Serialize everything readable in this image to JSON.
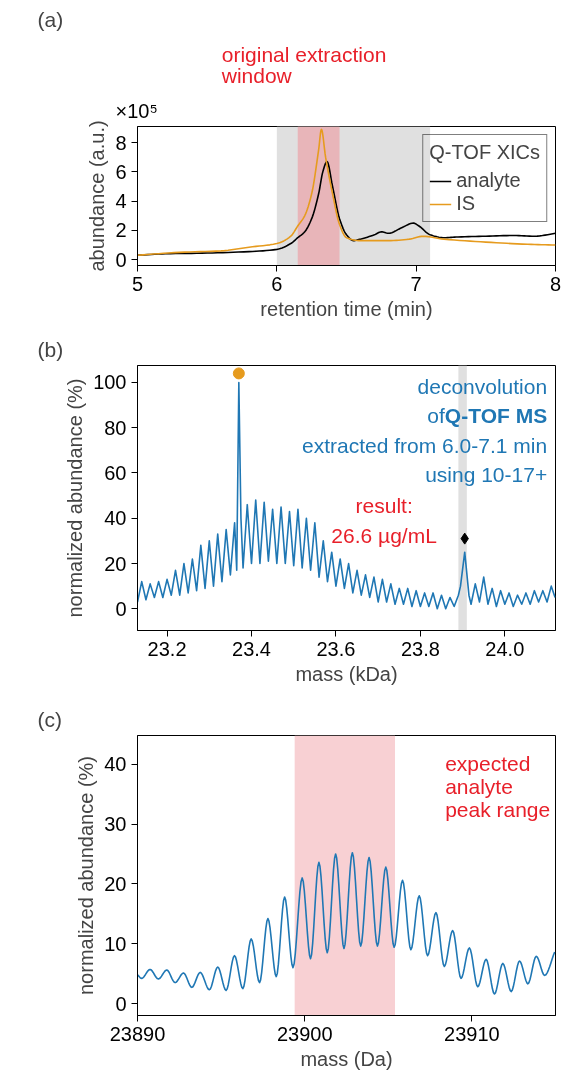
{
  "chart_data": [
    {
      "type": "line",
      "title": "(a)",
      "xlabel": "retention time (min)",
      "ylabel": "abundance (a.u.)",
      "legend_title": "Q-TOF XICs",
      "legend": "top right",
      "annotations": [
        "×10⁵"
      ],
      "xlim": [
        5,
        8
      ],
      "xticks": [
        5,
        6,
        7,
        8
      ],
      "ylim": [
        -0.4,
        9.1
      ],
      "yticks": [
        0,
        2,
        4,
        6,
        8
      ],
      "bands": [
        {
          "axis": "x",
          "from": 6.0,
          "to": 7.1,
          "color": "#e0e0e0"
        },
        {
          "axis": "x",
          "from": 6.15,
          "to": 6.45,
          "label": "original extraction window",
          "color": "#e8b5b9"
        }
      ],
      "series": [
        {
          "name": "analyte",
          "color": "#000000",
          "x": [
            5.0,
            5.2,
            5.5,
            5.8,
            6.0,
            6.1,
            6.15,
            6.2,
            6.25,
            6.3,
            6.33,
            6.36,
            6.4,
            6.45,
            6.5,
            6.55,
            6.6,
            6.7,
            6.75,
            6.8,
            6.9,
            6.98,
            7.02,
            7.1,
            7.2,
            7.3,
            7.5,
            7.7,
            7.85,
            8.0
          ],
          "values": [
            0.3,
            0.4,
            0.45,
            0.55,
            0.7,
            1.1,
            1.5,
            1.9,
            2.8,
            4.5,
            6.0,
            6.7,
            5.0,
            2.8,
            1.7,
            1.3,
            1.4,
            1.7,
            1.9,
            1.8,
            2.2,
            2.5,
            2.3,
            1.7,
            1.5,
            1.55,
            1.6,
            1.65,
            1.6,
            1.8
          ]
        },
        {
          "name": "IS",
          "color": "#e69b1e",
          "x": [
            5.0,
            5.3,
            5.6,
            5.8,
            6.0,
            6.1,
            6.15,
            6.2,
            6.25,
            6.3,
            6.32,
            6.35,
            6.4,
            6.45,
            6.5,
            6.6,
            6.8,
            6.95,
            7.05,
            7.2,
            7.5,
            7.8,
            8.0
          ],
          "values": [
            0.3,
            0.5,
            0.6,
            0.85,
            1.1,
            1.6,
            2.3,
            3.0,
            4.5,
            7.5,
            8.9,
            7.0,
            4.5,
            2.4,
            1.5,
            1.3,
            1.3,
            1.4,
            1.6,
            1.4,
            1.2,
            1.05,
            1.0
          ]
        }
      ]
    },
    {
      "type": "line",
      "title": "(b)",
      "xlabel": "mass (kDa)",
      "ylabel": "normalized abundance (%)",
      "annotations": [
        "deconvolution",
        "of",
        "Q-TOF MS",
        "extracted from 6.0-7.1 min",
        "using 10-17+",
        "result:",
        "26.6 µg/mL"
      ],
      "xlim": [
        23.13,
        24.12
      ],
      "xticks": [
        23.2,
        23.4,
        23.6,
        23.8,
        {
          "value": 24.0,
          "label": "24.0"
        }
      ],
      "ylim": [
        -9.6,
        107.5
      ],
      "yticks": [
        0,
        20,
        40,
        60,
        80,
        100
      ],
      "bands": [
        {
          "axis": "x",
          "from": 23.89,
          "to": 23.91,
          "color": "#e0e0e0"
        }
      ],
      "series": [
        {
          "color": "#1f77b4",
          "x": [
            23.13,
            23.14,
            23.15,
            23.16,
            23.17,
            23.18,
            23.19,
            23.2,
            23.21,
            23.22,
            23.23,
            23.24,
            23.25,
            23.26,
            23.27,
            23.28,
            23.29,
            23.3,
            23.31,
            23.32,
            23.33,
            23.34,
            23.35,
            23.36,
            23.365,
            23.37,
            23.375,
            23.38,
            23.39,
            23.4,
            23.41,
            23.42,
            23.43,
            23.44,
            23.45,
            23.46,
            23.47,
            23.48,
            23.49,
            23.5,
            23.51,
            23.52,
            23.53,
            23.54,
            23.55,
            23.56,
            23.57,
            23.58,
            23.59,
            23.6,
            23.61,
            23.62,
            23.63,
            23.64,
            23.65,
            23.66,
            23.67,
            23.68,
            23.69,
            23.7,
            23.71,
            23.72,
            23.73,
            23.74,
            23.75,
            23.76,
            23.77,
            23.78,
            23.79,
            23.8,
            23.81,
            23.82,
            23.83,
            23.84,
            23.85,
            23.86,
            23.87,
            23.88,
            23.89,
            23.895,
            23.905,
            23.915,
            23.92,
            23.93,
            23.94,
            23.95,
            23.96,
            23.97,
            23.98,
            23.99,
            24.0,
            24.01,
            24.02,
            24.03,
            24.04,
            24.05,
            24.06,
            24.07,
            24.08,
            24.09,
            24.1,
            24.11,
            24.119
          ],
          "values": [
            3,
            12,
            4,
            11,
            5,
            12,
            5,
            13,
            6,
            17,
            6,
            20,
            7,
            22,
            8,
            28,
            9,
            30,
            10,
            33,
            12,
            35,
            15,
            38,
            17,
            100,
            40,
            18,
            46,
            20,
            48,
            20,
            47,
            21,
            44,
            20,
            45,
            20,
            43,
            19,
            44,
            18,
            40,
            17,
            38,
            14,
            30,
            12,
            25,
            10,
            22,
            9,
            20,
            7,
            17,
            6,
            15,
            5,
            14,
            3,
            13,
            3,
            11,
            2,
            9,
            2,
            9,
            1,
            8,
            1,
            7,
            1,
            7,
            0,
            6,
            0,
            5,
            1,
            6,
            10,
            25,
            6,
            2,
            11,
            3,
            14,
            2,
            9,
            1,
            8,
            2,
            7,
            1,
            6,
            2,
            7,
            2,
            8,
            3,
            8,
            3,
            10,
            5
          ]
        },
        {
          "type": "scatter",
          "marker": "circle",
          "color": "#e69b1e",
          "x": [
            23.37
          ],
          "values": [
            104
          ]
        },
        {
          "type": "scatter",
          "marker": "diamond",
          "color": "#000000",
          "x": [
            23.905
          ],
          "values": [
            31
          ]
        }
      ]
    },
    {
      "type": "line",
      "title": "(c)",
      "xlabel": "mass (Da)",
      "ylabel": "normalized abundance (%)",
      "xlim": [
        23890,
        23915
      ],
      "xticks": [
        23890,
        23900,
        23910
      ],
      "ylim": [
        -2,
        44.8
      ],
      "yticks": [
        0,
        10,
        20,
        30,
        40
      ],
      "bands": [
        {
          "axis": "x",
          "from": 23899.4,
          "to": 23905.4,
          "label": "expected analyte peak range",
          "color": "#f8d0d3"
        }
      ],
      "series": [
        {
          "color": "#1f77b4",
          "x": [
            23890,
            23890.25,
            23890.75,
            23891.25,
            23891.75,
            23892.25,
            23892.75,
            23893.25,
            23893.75,
            23894.3,
            23894.8,
            23895.3,
            23895.8,
            23896.3,
            23896.8,
            23897.3,
            23897.8,
            23898.3,
            23898.8,
            23899.3,
            23899.85,
            23900.35,
            23900.85,
            23901.35,
            23901.85,
            23902.35,
            23902.85,
            23903.35,
            23903.85,
            23904.35,
            23904.85,
            23905.35,
            23905.85,
            23906.35,
            23906.85,
            23907.35,
            23907.85,
            23908.35,
            23908.85,
            23909.35,
            23909.85,
            23910.35,
            23910.85,
            23911.35,
            23911.85,
            23912.35,
            23912.85,
            23913.35,
            23913.85,
            23914.35,
            23914.95
          ],
          "values": [
            4.8,
            4.2,
            5.7,
            4.1,
            5.6,
            3.5,
            5.1,
            2.7,
            5.2,
            2.3,
            6.1,
            2.2,
            8.0,
            2.5,
            10.8,
            3.5,
            14.2,
            4.5,
            17.8,
            6.0,
            21.0,
            7.5,
            23.6,
            8.5,
            25.0,
            9.2,
            25.2,
            9.6,
            24.4,
            9.6,
            22.8,
            9.4,
            20.6,
            9.0,
            18.0,
            8.0,
            15.2,
            6.2,
            12.2,
            4.2,
            9.3,
            2.8,
            7.4,
            1.6,
            6.7,
            2.0,
            7.1,
            3.3,
            7.9,
            4.7,
            8.6
          ]
        }
      ]
    }
  ]
}
